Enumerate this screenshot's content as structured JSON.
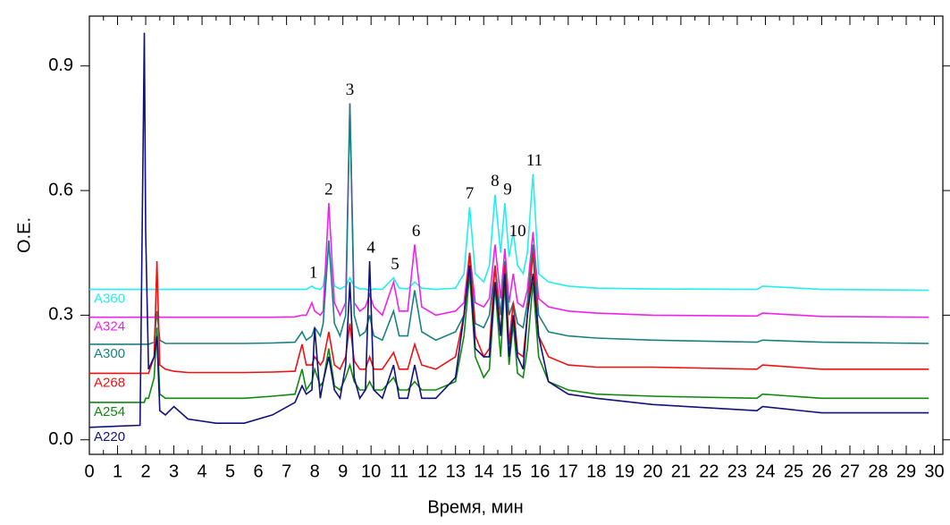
{
  "chart_data": {
    "type": "line",
    "xlabel": "Время, мин",
    "ylabel": "О.Е.",
    "xlim": [
      0,
      30.3
    ],
    "ylim": [
      -0.035,
      1.02
    ],
    "xticks": [
      0,
      1,
      2,
      3,
      4,
      5,
      6,
      7,
      8,
      9,
      10,
      11,
      12,
      13,
      14,
      15,
      16,
      17,
      18,
      19,
      20,
      21,
      22,
      23,
      24,
      25,
      26,
      27,
      28,
      29,
      30
    ],
    "yticks": [
      {
        "value": 0,
        "label": "0.0"
      },
      0.3,
      0.6,
      0.9
    ],
    "x": [
      0,
      1.8,
      1.95,
      2.0,
      2.1,
      2.3,
      2.4,
      2.5,
      2.7,
      3.0,
      3.5,
      4.5,
      5.5,
      6.5,
      7.3,
      7.55,
      7.7,
      7.9,
      8.0,
      8.2,
      8.3,
      8.5,
      8.7,
      8.9,
      9.1,
      9.25,
      9.4,
      9.6,
      9.8,
      9.95,
      10.1,
      10.4,
      10.8,
      11.0,
      11.3,
      11.55,
      11.8,
      12.3,
      13.0,
      13.3,
      13.5,
      13.7,
      14.0,
      14.2,
      14.4,
      14.6,
      14.75,
      14.9,
      15.05,
      15.2,
      15.4,
      15.55,
      15.75,
      15.95,
      16.3,
      17.0,
      18.0,
      20.0,
      23.7,
      23.9,
      26.0,
      29.8
    ],
    "series": [
      {
        "name": "A360",
        "color": "#22eeee",
        "values": [
          0.362,
          0.362,
          0.362,
          0.362,
          0.362,
          0.362,
          0.362,
          0.362,
          0.362,
          0.362,
          0.362,
          0.362,
          0.362,
          0.362,
          0.362,
          0.362,
          0.362,
          0.37,
          0.365,
          0.362,
          0.37,
          0.46,
          0.37,
          0.363,
          0.37,
          0.39,
          0.37,
          0.363,
          0.363,
          0.36,
          0.363,
          0.362,
          0.39,
          0.365,
          0.363,
          0.38,
          0.365,
          0.362,
          0.365,
          0.4,
          0.56,
          0.4,
          0.38,
          0.42,
          0.59,
          0.45,
          0.57,
          0.44,
          0.5,
          0.42,
          0.4,
          0.45,
          0.64,
          0.4,
          0.38,
          0.37,
          0.365,
          0.363,
          0.362,
          0.37,
          0.362,
          0.36
        ]
      },
      {
        "name": "A324",
        "color": "#ee22ee",
        "values": [
          0.295,
          0.295,
          0.295,
          0.295,
          0.295,
          0.295,
          0.3,
          0.295,
          0.295,
          0.295,
          0.295,
          0.295,
          0.295,
          0.295,
          0.296,
          0.3,
          0.3,
          0.33,
          0.31,
          0.3,
          0.31,
          0.57,
          0.33,
          0.3,
          0.33,
          0.81,
          0.33,
          0.31,
          0.32,
          0.35,
          0.32,
          0.3,
          0.38,
          0.31,
          0.31,
          0.47,
          0.32,
          0.3,
          0.31,
          0.33,
          0.45,
          0.33,
          0.32,
          0.34,
          0.47,
          0.34,
          0.46,
          0.33,
          0.4,
          0.33,
          0.32,
          0.36,
          0.5,
          0.34,
          0.32,
          0.31,
          0.305,
          0.3,
          0.298,
          0.305,
          0.297,
          0.295
        ]
      },
      {
        "name": "A300",
        "color": "#1a8080",
        "values": [
          0.23,
          0.23,
          0.23,
          0.23,
          0.23,
          0.235,
          0.31,
          0.24,
          0.232,
          0.232,
          0.232,
          0.232,
          0.232,
          0.233,
          0.235,
          0.26,
          0.24,
          0.25,
          0.27,
          0.25,
          0.28,
          0.48,
          0.28,
          0.25,
          0.3,
          0.81,
          0.3,
          0.25,
          0.26,
          0.3,
          0.25,
          0.24,
          0.31,
          0.25,
          0.25,
          0.36,
          0.26,
          0.24,
          0.26,
          0.3,
          0.45,
          0.28,
          0.27,
          0.3,
          0.42,
          0.3,
          0.43,
          0.3,
          0.33,
          0.28,
          0.27,
          0.33,
          0.47,
          0.3,
          0.26,
          0.25,
          0.245,
          0.24,
          0.235,
          0.24,
          0.235,
          0.232
        ]
      },
      {
        "name": "A268",
        "color": "#ee1111",
        "values": [
          0.16,
          0.16,
          0.16,
          0.16,
          0.16,
          0.2,
          0.43,
          0.18,
          0.17,
          0.165,
          0.162,
          0.162,
          0.162,
          0.163,
          0.165,
          0.23,
          0.18,
          0.18,
          0.2,
          0.18,
          0.19,
          0.26,
          0.18,
          0.17,
          0.2,
          0.28,
          0.19,
          0.17,
          0.17,
          0.2,
          0.17,
          0.17,
          0.21,
          0.17,
          0.17,
          0.23,
          0.18,
          0.17,
          0.2,
          0.3,
          0.45,
          0.25,
          0.2,
          0.22,
          0.42,
          0.25,
          0.42,
          0.23,
          0.33,
          0.21,
          0.2,
          0.3,
          0.45,
          0.25,
          0.2,
          0.18,
          0.175,
          0.175,
          0.17,
          0.18,
          0.17,
          0.17
        ]
      },
      {
        "name": "A254",
        "color": "#118811",
        "values": [
          0.09,
          0.09,
          0.09,
          0.1,
          0.1,
          0.15,
          0.27,
          0.11,
          0.1,
          0.1,
          0.1,
          0.1,
          0.1,
          0.105,
          0.11,
          0.17,
          0.12,
          0.14,
          0.17,
          0.13,
          0.14,
          0.22,
          0.13,
          0.12,
          0.15,
          0.18,
          0.14,
          0.12,
          0.12,
          0.14,
          0.12,
          0.12,
          0.15,
          0.12,
          0.12,
          0.14,
          0.12,
          0.12,
          0.14,
          0.25,
          0.4,
          0.2,
          0.15,
          0.17,
          0.37,
          0.2,
          0.38,
          0.18,
          0.28,
          0.16,
          0.15,
          0.22,
          0.38,
          0.2,
          0.14,
          0.12,
          0.11,
          0.105,
          0.1,
          0.11,
          0.1,
          0.1
        ]
      },
      {
        "name": "A220",
        "color": "#11117a",
        "values": [
          0.03,
          0.035,
          0.98,
          0.5,
          0.17,
          0.2,
          0.25,
          0.07,
          0.06,
          0.08,
          0.05,
          0.04,
          0.04,
          0.06,
          0.09,
          0.13,
          0.11,
          0.12,
          0.27,
          0.1,
          0.14,
          0.2,
          0.12,
          0.1,
          0.18,
          0.38,
          0.15,
          0.1,
          0.12,
          0.43,
          0.12,
          0.1,
          0.18,
          0.1,
          0.1,
          0.18,
          0.1,
          0.1,
          0.15,
          0.3,
          0.42,
          0.22,
          0.2,
          0.2,
          0.38,
          0.25,
          0.4,
          0.2,
          0.3,
          0.2,
          0.17,
          0.3,
          0.4,
          0.25,
          0.14,
          0.11,
          0.1,
          0.085,
          0.07,
          0.08,
          0.065,
          0.065
        ]
      }
    ],
    "annotations": [
      {
        "text": "1",
        "x": 7.95,
        "y": 0.4
      },
      {
        "text": "2",
        "x": 8.5,
        "y": 0.6
      },
      {
        "text": "3",
        "x": 9.25,
        "y": 0.84
      },
      {
        "text": "4",
        "x": 10.0,
        "y": 0.46
      },
      {
        "text": "5",
        "x": 10.85,
        "y": 0.42
      },
      {
        "text": "6",
        "x": 11.6,
        "y": 0.5
      },
      {
        "text": "7",
        "x": 13.5,
        "y": 0.59
      },
      {
        "text": "8",
        "x": 14.4,
        "y": 0.62
      },
      {
        "text": "9",
        "x": 14.85,
        "y": 0.6
      },
      {
        "text": "10",
        "x": 15.2,
        "y": 0.5
      },
      {
        "text": "11",
        "x": 15.8,
        "y": 0.67
      }
    ]
  }
}
